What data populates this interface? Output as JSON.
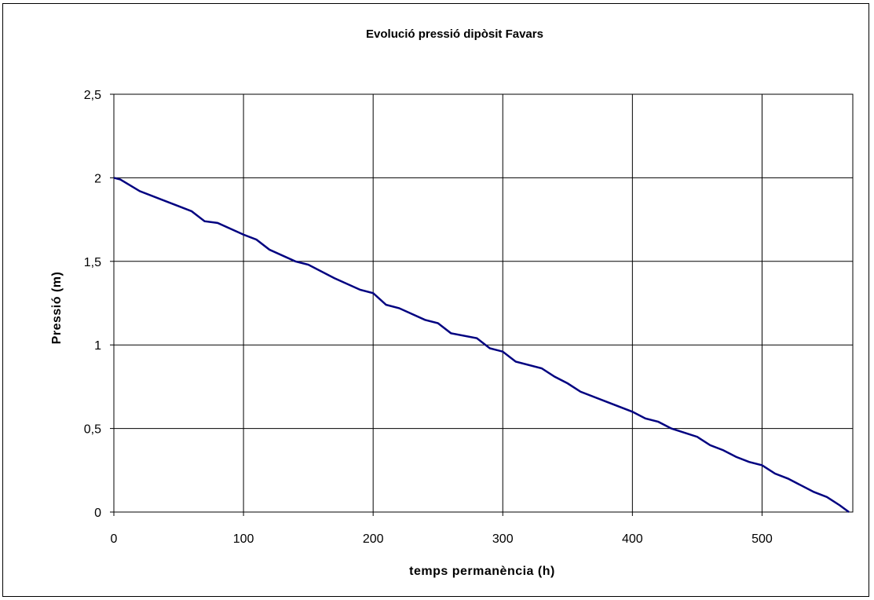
{
  "chart_data": {
    "type": "line",
    "title": "Evolució pressió dipòsit Favars",
    "xlabel": "temps permanència (h)",
    "ylabel": "Pressió (m)",
    "xlim": [
      0,
      570
    ],
    "ylim": [
      0,
      2.5
    ],
    "x_ticks": [
      "0",
      "100",
      "200",
      "300",
      "400",
      "500"
    ],
    "y_ticks": [
      "0",
      "0,5",
      "1",
      "1,5",
      "2",
      "2,5"
    ],
    "grid": true,
    "legend": "none",
    "series": [
      {
        "color": "#000080",
        "x": [
          0,
          5,
          20,
          50,
          60,
          70,
          80,
          100,
          110,
          120,
          140,
          150,
          170,
          190,
          200,
          210,
          220,
          240,
          250,
          260,
          280,
          290,
          300,
          310,
          330,
          340,
          350,
          360,
          380,
          400,
          410,
          420,
          430,
          450,
          460,
          470,
          480,
          490,
          500,
          510,
          520,
          530,
          540,
          550,
          560,
          567
        ],
        "y": [
          2.0,
          1.99,
          1.92,
          1.83,
          1.8,
          1.74,
          1.73,
          1.66,
          1.63,
          1.57,
          1.5,
          1.48,
          1.4,
          1.33,
          1.31,
          1.24,
          1.22,
          1.15,
          1.13,
          1.07,
          1.04,
          0.98,
          0.96,
          0.9,
          0.86,
          0.81,
          0.77,
          0.72,
          0.66,
          0.6,
          0.56,
          0.54,
          0.5,
          0.45,
          0.4,
          0.37,
          0.33,
          0.3,
          0.28,
          0.23,
          0.2,
          0.16,
          0.12,
          0.09,
          0.04,
          0.0
        ]
      }
    ]
  }
}
